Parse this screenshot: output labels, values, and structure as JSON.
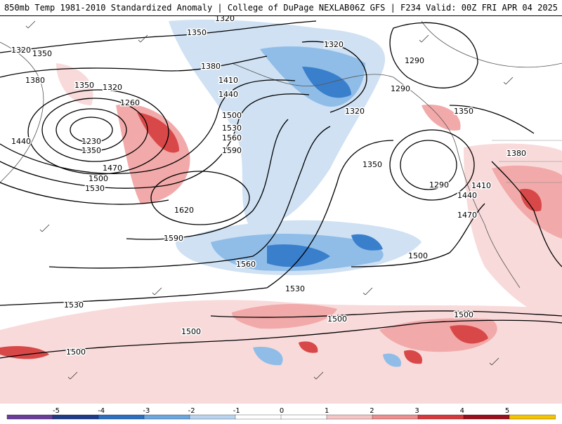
{
  "header": {
    "left_title": "850mb Temp 1981-2010 Standardized Anomaly | College of DuPage NEXLAB",
    "right_title": "06Z GFS | F234 Valid: 00Z FRI APR 04 2025"
  },
  "contour_labels": [
    "1320",
    "1350",
    "1320",
    "1350",
    "1380",
    "1350",
    "1320",
    "1260",
    "1230",
    "1350",
    "1440",
    "1470",
    "1500",
    "1530",
    "1380",
    "1410",
    "1440",
    "1500",
    "1530",
    "1560",
    "1590",
    "1620",
    "1590",
    "1560",
    "1530",
    "1500",
    "1320",
    "1290",
    "1290",
    "1320",
    "1350",
    "1350",
    "1290",
    "1440",
    "1410",
    "1470",
    "1380",
    "1500",
    "1500",
    "1500",
    "1500",
    "1530"
  ],
  "colorbar": {
    "ticks": [
      "-5",
      "-4",
      "-3",
      "-2",
      "-1",
      "0",
      "1",
      "2",
      "3",
      "4",
      "5"
    ],
    "colors": [
      "#6a3d9a",
      "#1f3c88",
      "#2c6fbf",
      "#6aa6e0",
      "#b8d4ee",
      "#ffffff",
      "#ffffff",
      "#f6c6c6",
      "#ee8e8e",
      "#d8383c",
      "#9a0f1a",
      "#f5c400"
    ]
  },
  "legend_colors": {
    "strong_cold": "#3a7fcc",
    "cold": "#8fbde8",
    "weak_cold": "#cfe1f3",
    "weak_warm": "#f9dada",
    "warm": "#f2a9a9",
    "strong_warm": "#d94848",
    "extreme_warm": "#9f1020"
  }
}
